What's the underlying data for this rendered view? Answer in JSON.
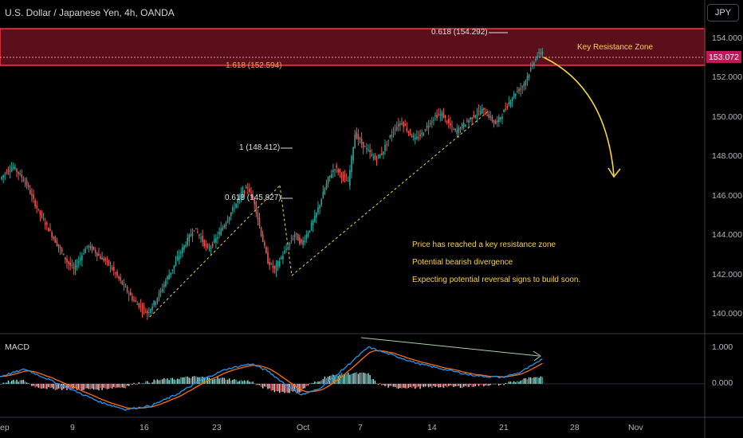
{
  "header": {
    "title": "U.S. Dollar / Japanese Yen, 4h, OANDA",
    "currency_button": "JPY"
  },
  "price_axis": {
    "labels": [
      "154.000",
      "152.000",
      "150.000",
      "148.000",
      "146.000",
      "144.000",
      "142.000",
      "140.000"
    ],
    "current_price": "153.072"
  },
  "macd_axis": {
    "labels": [
      "1.000",
      "0.000"
    ]
  },
  "time_axis": {
    "labels": [
      "ep",
      "9",
      "16",
      "23",
      "Oct",
      "7",
      "14",
      "21",
      "28",
      "Nov"
    ]
  },
  "annotations": {
    "fib_top": "0.618 (154.292)",
    "fib_zone": "1.618 (152.594)",
    "fib_one": "1 (148.412)",
    "fib_left": "0.618 (145.827)",
    "zone_label": "Key Resistance Zone",
    "notes": [
      "Price has reached a key resistance zone",
      "Potential bearish divergence",
      "Expecting potential reversal signs to build soon."
    ]
  },
  "indicator": {
    "name": "MACD"
  },
  "colors": {
    "up": "#26a69a",
    "down": "#ef5350",
    "zone": "#8b1e2b",
    "macd": "#2196f3",
    "signal": "#ff6d00",
    "arrow": "#f5d442"
  },
  "chart_data": {
    "type": "candlestick",
    "symbol": "U.S. Dollar / Japanese Yen",
    "timeframe": "4h",
    "price_path": [
      [
        0,
        146.6
      ],
      [
        4,
        147.0
      ],
      [
        8,
        147.2
      ],
      [
        12,
        146.8
      ],
      [
        16,
        146.3
      ],
      [
        20,
        145.5
      ],
      [
        24,
        144.8
      ],
      [
        28,
        144.2
      ],
      [
        32,
        143.6
      ],
      [
        36,
        143.0
      ],
      [
        40,
        142.4
      ],
      [
        44,
        142.0
      ],
      [
        48,
        142.6
      ],
      [
        52,
        143.2
      ],
      [
        56,
        143.0
      ],
      [
        60,
        142.6
      ],
      [
        64,
        142.4
      ],
      [
        68,
        141.9
      ],
      [
        72,
        141.4
      ],
      [
        76,
        140.9
      ],
      [
        80,
        140.4
      ],
      [
        84,
        140.1
      ],
      [
        88,
        139.8
      ],
      [
        92,
        140.3
      ],
      [
        96,
        140.9
      ],
      [
        100,
        141.6
      ],
      [
        104,
        142.2
      ],
      [
        108,
        142.9
      ],
      [
        112,
        143.5
      ],
      [
        116,
        144.1
      ],
      [
        120,
        143.6
      ],
      [
        124,
        143.0
      ],
      [
        128,
        143.4
      ],
      [
        132,
        144.0
      ],
      [
        136,
        144.6
      ],
      [
        140,
        145.2
      ],
      [
        144,
        145.8
      ],
      [
        148,
        146.2
      ],
      [
        152,
        145.4
      ],
      [
        156,
        143.8
      ],
      [
        160,
        142.4
      ],
      [
        164,
        142.0
      ],
      [
        168,
        142.6
      ],
      [
        172,
        143.2
      ],
      [
        176,
        143.8
      ],
      [
        180,
        143.3
      ],
      [
        184,
        143.9
      ],
      [
        188,
        144.6
      ],
      [
        192,
        145.6
      ],
      [
        196,
        146.6
      ],
      [
        200,
        147.2
      ],
      [
        204,
        146.8
      ],
      [
        208,
        146.4
      ],
      [
        212,
        148.9
      ],
      [
        216,
        148.4
      ],
      [
        220,
        148.0
      ],
      [
        224,
        147.6
      ],
      [
        228,
        147.9
      ],
      [
        232,
        148.6
      ],
      [
        236,
        149.2
      ],
      [
        240,
        149.5
      ],
      [
        244,
        149.0
      ],
      [
        248,
        148.6
      ],
      [
        252,
        148.9
      ],
      [
        256,
        149.4
      ],
      [
        260,
        149.8
      ],
      [
        264,
        149.9
      ],
      [
        268,
        149.4
      ],
      [
        272,
        149.0
      ],
      [
        276,
        149.3
      ],
      [
        280,
        149.6
      ],
      [
        284,
        149.9
      ],
      [
        288,
        150.1
      ],
      [
        292,
        149.8
      ],
      [
        296,
        149.4
      ],
      [
        300,
        149.9
      ],
      [
        304,
        150.5
      ],
      [
        308,
        151.0
      ],
      [
        312,
        151.3
      ],
      [
        316,
        152.0
      ],
      [
        320,
        152.8
      ],
      [
        324,
        153.1
      ]
    ],
    "macd_path": [
      [
        0,
        0.2
      ],
      [
        15,
        0.4
      ],
      [
        30,
        0.1
      ],
      [
        45,
        -0.2
      ],
      [
        60,
        -0.5
      ],
      [
        75,
        -0.7
      ],
      [
        90,
        -0.6
      ],
      [
        105,
        -0.3
      ],
      [
        120,
        0.1
      ],
      [
        135,
        0.4
      ],
      [
        150,
        0.55
      ],
      [
        160,
        0.35
      ],
      [
        170,
        0.0
      ],
      [
        180,
        -0.3
      ],
      [
        190,
        -0.15
      ],
      [
        200,
        0.2
      ],
      [
        210,
        0.6
      ],
      [
        220,
        1.0
      ],
      [
        230,
        0.85
      ],
      [
        240,
        0.7
      ],
      [
        250,
        0.55
      ],
      [
        260,
        0.45
      ],
      [
        270,
        0.35
      ],
      [
        280,
        0.25
      ],
      [
        290,
        0.2
      ],
      [
        300,
        0.18
      ],
      [
        310,
        0.3
      ],
      [
        320,
        0.55
      ],
      [
        324,
        0.7
      ]
    ],
    "price_ylim": [
      139.5,
      155.0
    ],
    "macd_ylim": [
      -0.9,
      1.2
    ],
    "resistance_zone": [
      152.594,
      154.292
    ],
    "fib_levels": [
      154.292,
      152.594,
      148.412,
      145.827
    ],
    "current_price": 153.072
  }
}
